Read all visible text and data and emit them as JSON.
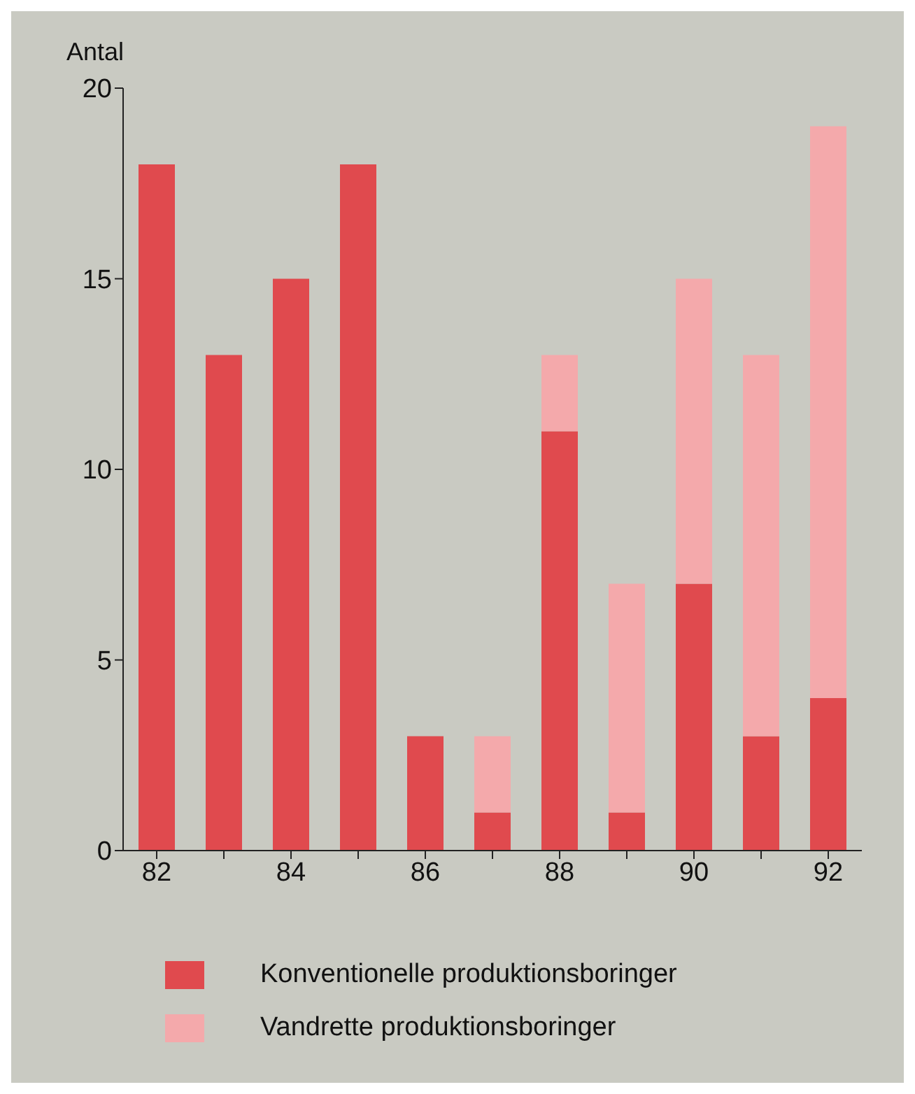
{
  "chart_data": {
    "type": "bar",
    "ylabel": "Antal",
    "categories": [
      "82",
      null,
      "84",
      null,
      "86",
      null,
      "88",
      null,
      "90",
      null,
      "92"
    ],
    "stacked": true,
    "series": [
      {
        "name": "Konventionelle produktionsboringer",
        "color": "#e04a4e",
        "values": [
          18,
          13,
          15,
          18,
          3,
          1,
          11,
          1,
          7,
          3,
          4
        ]
      },
      {
        "name": "Vandrette produktionsboringer",
        "color": "#f4a9ab",
        "values": [
          null,
          null,
          null,
          null,
          null,
          2,
          2,
          6,
          8,
          10,
          15
        ]
      }
    ],
    "ylim": [
      0,
      20
    ],
    "yticks": [
      0,
      5,
      10,
      15,
      20
    ],
    "grid": false,
    "legend": "bottom"
  }
}
